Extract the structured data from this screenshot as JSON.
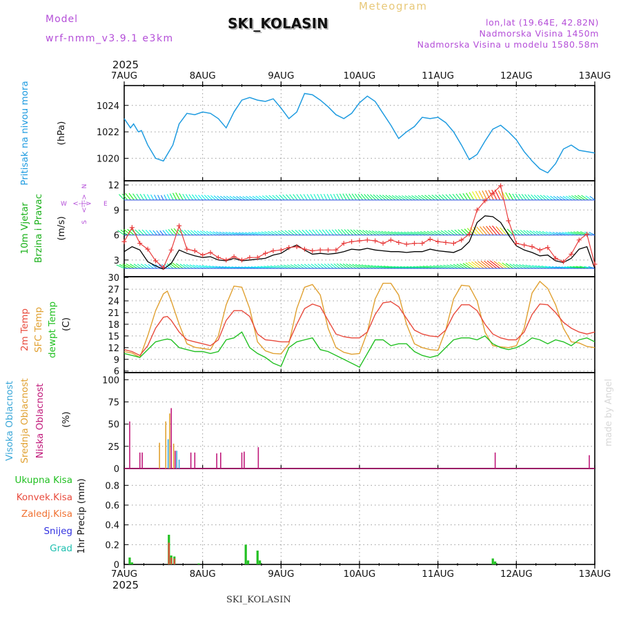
{
  "header": {
    "model_label": "Model",
    "model_name": "wrf-nmm_v3.9.1 e3km",
    "station": "SKI_KOLASIN",
    "meteogram": "Meteogram",
    "lonlat": "lon,lat (19.64E, 42.82N)",
    "elevation": "Nadmorska Visina 1450m",
    "model_elevation": "Nadmorska Visina u modelu 1580.58m",
    "year_top": "2025",
    "year_bottom": "2025",
    "footer_station": "SKI_KOLASIN",
    "watermark": "made by Angel"
  },
  "colors": {
    "pressure": "#1e9be0",
    "wind_label": "#18b018",
    "wind_speed": "#e83c3c",
    "wind_mean": "#000000",
    "temp2m": "#e84a3c",
    "sfc_temp": "#e0a030",
    "dewpt": "#22c022",
    "cloud_high": "#3aa7d8",
    "cloud_mid": "#e0a030",
    "cloud_low": "#c0187a",
    "precip_total": "#22c022",
    "precip_conv": "#e84a3c",
    "precip_frozen": "#f07030",
    "precip_snow": "#3030e0",
    "precip_hail": "#20c0b0",
    "model_purple": "#b44ed8",
    "meteogram_gold": "#e8c878"
  },
  "chart_data": [
    {
      "type": "line",
      "id": "pressure",
      "y_title": "Pritisak na nivou mora",
      "unit": "(hPa)",
      "yticks": [
        1020,
        1022,
        1024
      ],
      "ylim": [
        1018.3,
        1025.5
      ],
      "x_ticks": [
        "7AUG",
        "8AUG",
        "9AUG",
        "10AUG",
        "11AUG",
        "12AUG",
        "13AUG"
      ],
      "x_days": [
        0,
        6
      ],
      "series": [
        {
          "name": "MSL pressure",
          "color_key": "pressure",
          "x": [
            0,
            0.08,
            0.12,
            0.18,
            0.22,
            0.3,
            0.4,
            0.5,
            0.55,
            0.62,
            0.7,
            0.8,
            0.9,
            1.0,
            1.1,
            1.2,
            1.3,
            1.4,
            1.5,
            1.6,
            1.7,
            1.8,
            1.9,
            2.0,
            2.1,
            2.2,
            2.3,
            2.4,
            2.5,
            2.6,
            2.7,
            2.8,
            2.9,
            3.0,
            3.1,
            3.2,
            3.3,
            3.4,
            3.5,
            3.6,
            3.7,
            3.8,
            3.9,
            4.0,
            4.1,
            4.2,
            4.3,
            4.4,
            4.5,
            4.6,
            4.7,
            4.8,
            4.9,
            5.0,
            5.1,
            5.2,
            5.3,
            5.4,
            5.5,
            5.6,
            5.7,
            5.8,
            5.9,
            6.0
          ],
          "values": [
            1023,
            1022.3,
            1022.6,
            1022.0,
            1022.1,
            1021.0,
            1020.0,
            1019.8,
            1020.3,
            1021.0,
            1022.6,
            1023.4,
            1023.3,
            1023.5,
            1023.4,
            1023.0,
            1022.3,
            1023.5,
            1024.4,
            1024.6,
            1024.4,
            1024.3,
            1024.5,
            1023.8,
            1023.0,
            1023.5,
            1024.9,
            1024.8,
            1024.4,
            1023.9,
            1023.3,
            1023.0,
            1023.4,
            1024.2,
            1024.7,
            1024.3,
            1023.4,
            1022.5,
            1021.5,
            1022.0,
            1022.4,
            1023.1,
            1023.0,
            1023.1,
            1022.7,
            1022.0,
            1021.0,
            1019.9,
            1020.3,
            1021.3,
            1022.2,
            1022.5,
            1022.0,
            1021.4,
            1020.5,
            1019.8,
            1019.2,
            1018.9,
            1019.6,
            1020.7,
            1021.0,
            1020.6,
            1020.5,
            1020.4
          ]
        }
      ]
    },
    {
      "type": "line",
      "id": "wind",
      "y_title_1": "10m Vjetar",
      "y_title_2": "Brzina i Pravac",
      "unit": "(m/s)",
      "compass": {
        "w": "W",
        "e": "E",
        "n": "N",
        "s": "S",
        "arrow": "<-|->"
      },
      "yticks": [
        3,
        6,
        9,
        12
      ],
      "ylim": [
        1.0,
        12.5
      ],
      "barb_rows": [
        2.0,
        6.0,
        10.2
      ],
      "series": [
        {
          "name": "wind gust",
          "color_key": "wind_speed",
          "marker": "+",
          "x": [
            0,
            0.1,
            0.2,
            0.3,
            0.4,
            0.5,
            0.6,
            0.7,
            0.8,
            0.9,
            1.0,
            1.1,
            1.2,
            1.3,
            1.4,
            1.5,
            1.6,
            1.7,
            1.8,
            1.9,
            2.0,
            2.1,
            2.2,
            2.3,
            2.4,
            2.5,
            2.6,
            2.7,
            2.8,
            2.9,
            3.0,
            3.1,
            3.2,
            3.3,
            3.4,
            3.5,
            3.6,
            3.7,
            3.8,
            3.9,
            4.0,
            4.1,
            4.2,
            4.3,
            4.4,
            4.5,
            4.6,
            4.7,
            4.8,
            4.9,
            5.0,
            5.1,
            5.2,
            5.3,
            5.4,
            5.5,
            5.6,
            5.7,
            5.8,
            5.9,
            6.0
          ],
          "values": [
            5.2,
            6.9,
            5.0,
            4.3,
            2.9,
            2.1,
            4.2,
            7.1,
            4.3,
            4.1,
            3.6,
            3.9,
            3.3,
            3.0,
            3.4,
            3.0,
            3.3,
            3.3,
            3.8,
            4.1,
            4.2,
            4.5,
            4.6,
            4.3,
            4.1,
            4.2,
            4.2,
            4.2,
            5.0,
            5.2,
            5.3,
            5.4,
            5.3,
            5.0,
            5.4,
            5.1,
            4.9,
            5.0,
            5.0,
            5.5,
            5.2,
            5.1,
            5.0,
            5.4,
            6.1,
            9.0,
            10.1,
            11.0,
            11.9,
            7.7,
            5.0,
            4.8,
            4.6,
            4.2,
            4.5,
            3.2,
            2.8,
            3.7,
            5.4,
            6.1,
            2.5
          ]
        },
        {
          "name": "wind mean",
          "color_key": "wind_mean",
          "x": [
            0,
            0.1,
            0.2,
            0.3,
            0.4,
            0.5,
            0.6,
            0.7,
            0.8,
            0.9,
            1.0,
            1.1,
            1.2,
            1.3,
            1.4,
            1.5,
            1.6,
            1.7,
            1.8,
            1.9,
            2.0,
            2.1,
            2.2,
            2.3,
            2.4,
            2.5,
            2.6,
            2.7,
            2.8,
            2.9,
            3.0,
            3.1,
            3.2,
            3.3,
            3.4,
            3.5,
            3.6,
            3.7,
            3.8,
            3.9,
            4.0,
            4.1,
            4.2,
            4.3,
            4.4,
            4.5,
            4.6,
            4.7,
            4.8,
            4.9,
            5.0,
            5.1,
            5.2,
            5.3,
            5.4,
            5.5,
            5.6,
            5.7,
            5.8,
            5.9,
            6.0
          ],
          "values": [
            4.0,
            4.6,
            4.2,
            2.8,
            2.3,
            1.9,
            2.6,
            4.2,
            3.8,
            3.5,
            3.3,
            3.4,
            3.0,
            2.9,
            3.2,
            2.9,
            3.0,
            3.1,
            3.2,
            3.6,
            3.8,
            4.4,
            4.8,
            4.2,
            3.7,
            3.8,
            3.7,
            3.8,
            4.0,
            4.3,
            4.2,
            4.4,
            4.2,
            4.1,
            4.0,
            4.0,
            3.9,
            4.0,
            4.0,
            4.3,
            4.1,
            4.0,
            3.9,
            4.3,
            5.2,
            7.5,
            8.3,
            8.2,
            7.5,
            6.0,
            4.7,
            4.2,
            3.9,
            3.5,
            3.6,
            2.9,
            2.7,
            3.2,
            4.3,
            4.6,
            2.0
          ]
        }
      ]
    },
    {
      "type": "line",
      "id": "temperature",
      "y_title_1": "2m Temp",
      "y_title_2": "SFC Temp",
      "y_title_3": "dewpt Temp",
      "unit": "(C)",
      "yticks": [
        6,
        9,
        12,
        15,
        18,
        21,
        24,
        27,
        30
      ],
      "ylim": [
        5.6,
        30.2
      ],
      "series": [
        {
          "name": "SFC temp",
          "color_key": "sfc_temp",
          "x": [
            0,
            0.1,
            0.2,
            0.3,
            0.4,
            0.5,
            0.55,
            0.6,
            0.7,
            0.8,
            0.9,
            1.0,
            1.1,
            1.2,
            1.3,
            1.4,
            1.5,
            1.6,
            1.7,
            1.8,
            1.9,
            2.0,
            2.1,
            2.2,
            2.3,
            2.4,
            2.5,
            2.6,
            2.7,
            2.8,
            2.9,
            3.0,
            3.1,
            3.2,
            3.3,
            3.4,
            3.5,
            3.6,
            3.7,
            3.8,
            3.9,
            4.0,
            4.1,
            4.2,
            4.3,
            4.4,
            4.5,
            4.6,
            4.7,
            4.8,
            4.9,
            5.0,
            5.1,
            5.2,
            5.3,
            5.4,
            5.5,
            5.6,
            5.7,
            5.8,
            5.9,
            6.0
          ],
          "values": [
            11.0,
            10.6,
            9.5,
            15.0,
            21.5,
            25.8,
            26.5,
            24.0,
            18.0,
            13.0,
            12.1,
            11.8,
            11.5,
            15.0,
            23.0,
            27.8,
            27.5,
            22.0,
            13.5,
            11.2,
            10.5,
            10.4,
            13.0,
            22.0,
            27.5,
            28.2,
            25.5,
            17.0,
            12.0,
            10.8,
            10.3,
            10.5,
            16.0,
            24.5,
            28.5,
            28.5,
            25.5,
            18.0,
            13.0,
            12.0,
            11.5,
            11.3,
            16.5,
            24.5,
            28.0,
            27.8,
            24.0,
            16.0,
            12.5,
            12.2,
            12.0,
            12.5,
            17.0,
            26.0,
            29.0,
            27.2,
            23.0,
            17.0,
            13.5,
            13.2,
            12.3,
            12.0
          ]
        },
        {
          "name": "2m temp",
          "color_key": "temp2m",
          "x": [
            0,
            0.1,
            0.2,
            0.3,
            0.4,
            0.5,
            0.55,
            0.6,
            0.7,
            0.8,
            0.9,
            1.0,
            1.1,
            1.2,
            1.3,
            1.4,
            1.5,
            1.6,
            1.7,
            1.8,
            1.9,
            2.0,
            2.1,
            2.2,
            2.3,
            2.4,
            2.5,
            2.6,
            2.7,
            2.8,
            2.9,
            3.0,
            3.1,
            3.2,
            3.3,
            3.4,
            3.5,
            3.6,
            3.7,
            3.8,
            3.9,
            4.0,
            4.1,
            4.2,
            4.3,
            4.4,
            4.5,
            4.6,
            4.7,
            4.8,
            4.9,
            5.0,
            5.1,
            5.2,
            5.3,
            5.4,
            5.5,
            5.6,
            5.7,
            5.8,
            5.9,
            6.0
          ],
          "values": [
            11.5,
            11.0,
            10.0,
            12.5,
            17.0,
            19.8,
            20.0,
            19.0,
            16.0,
            14.0,
            13.5,
            13.0,
            12.5,
            14.0,
            19.0,
            21.5,
            21.5,
            20.0,
            15.5,
            14.0,
            13.8,
            13.5,
            13.5,
            18.0,
            22.0,
            23.2,
            22.5,
            19.0,
            15.5,
            14.8,
            14.5,
            14.5,
            16.0,
            20.5,
            23.5,
            23.8,
            22.5,
            19.5,
            16.5,
            15.5,
            15.0,
            14.8,
            16.5,
            20.5,
            23.0,
            23.0,
            21.5,
            18.0,
            15.5,
            14.5,
            14.0,
            14.0,
            16.0,
            20.5,
            23.2,
            23.0,
            21.0,
            18.5,
            17.0,
            16.0,
            15.5,
            16.0
          ]
        },
        {
          "name": "dewpoint",
          "color_key": "dewpt",
          "x": [
            0,
            0.1,
            0.2,
            0.3,
            0.4,
            0.5,
            0.55,
            0.6,
            0.7,
            0.8,
            0.9,
            1.0,
            1.1,
            1.2,
            1.3,
            1.4,
            1.5,
            1.6,
            1.7,
            1.8,
            1.9,
            2.0,
            2.1,
            2.2,
            2.3,
            2.4,
            2.5,
            2.6,
            2.7,
            2.8,
            2.9,
            3.0,
            3.1,
            3.2,
            3.3,
            3.4,
            3.5,
            3.6,
            3.7,
            3.8,
            3.9,
            4.0,
            4.1,
            4.2,
            4.3,
            4.4,
            4.5,
            4.6,
            4.7,
            4.8,
            4.9,
            5.0,
            5.1,
            5.2,
            5.3,
            5.4,
            5.5,
            5.6,
            5.7,
            5.8,
            5.9,
            6.0
          ],
          "values": [
            10.5,
            10.0,
            9.5,
            11.5,
            13.5,
            14.0,
            14.2,
            14.0,
            12.0,
            11.5,
            11.0,
            11.0,
            10.5,
            11.0,
            14.0,
            14.5,
            16.0,
            12.0,
            10.5,
            9.5,
            8.0,
            7.2,
            12.0,
            13.5,
            14.0,
            14.5,
            11.5,
            11.0,
            10.0,
            9.0,
            8.0,
            7.0,
            10.5,
            14.0,
            14.0,
            12.5,
            13.0,
            13.0,
            11.0,
            10.0,
            9.5,
            10.0,
            12.0,
            14.0,
            14.5,
            14.5,
            14.0,
            15.0,
            13.0,
            12.0,
            11.5,
            12.0,
            13.0,
            14.5,
            14.0,
            13.0,
            14.0,
            13.5,
            12.5,
            14.0,
            14.5,
            13.5
          ]
        }
      ]
    },
    {
      "type": "bar",
      "id": "clouds",
      "y_title_1": "Visoka Oblacnost",
      "y_title_2": "Srednja Oblacnost",
      "y_title_3": "Niska Oblacnost",
      "unit": "(%)",
      "yticks": [
        0,
        25,
        50,
        75,
        100
      ],
      "ylim": [
        0,
        108
      ],
      "series": [
        {
          "name": "low",
          "color_key": "cloud_low",
          "x": [
            0.07,
            0.2,
            0.23,
            0.6,
            0.65,
            0.85,
            0.9,
            1.18,
            1.23,
            1.5,
            1.53,
            1.71,
            4.73,
            5.93
          ],
          "values": [
            53,
            18,
            18,
            68,
            20,
            18,
            18,
            17,
            18,
            18,
            19,
            24,
            18,
            15
          ]
        },
        {
          "name": "mid",
          "color_key": "cloud_mid",
          "x": [
            0.45,
            0.53,
            0.58,
            0.63
          ],
          "values": [
            29,
            53,
            62,
            28
          ]
        },
        {
          "name": "high",
          "color_key": "cloud_high",
          "x": [
            0.56,
            0.67,
            0.7
          ],
          "values": [
            33,
            20,
            10
          ]
        }
      ]
    },
    {
      "type": "bar",
      "id": "precip",
      "legend": {
        "total": "Ukupna Kisa",
        "conv": "Konvek.Kisa",
        "frozen": "Zaledj.Kisa",
        "snow": "Snijeg",
        "hail": "Grad"
      },
      "y_title": "1hr Precip",
      "unit": "(mm)",
      "yticks": [
        0,
        0.2,
        0.4,
        0.6,
        0.8
      ],
      "ylim": [
        0,
        0.97
      ],
      "series": [
        {
          "name": "total",
          "color_key": "precip_total",
          "x": [
            0.07,
            0.1,
            0.57,
            0.6,
            0.64,
            0.95,
            1.55,
            1.58,
            1.7,
            1.73,
            4.7,
            4.73
          ],
          "values": [
            0.07,
            0.02,
            0.3,
            0.09,
            0.08,
            0.01,
            0.2,
            0.04,
            0.14,
            0.04,
            0.06,
            0.03
          ]
        },
        {
          "name": "convective",
          "color_key": "precip_conv",
          "x": [
            0.57,
            0.6,
            0.64
          ],
          "values": [
            0.22,
            0.07,
            0.06
          ]
        }
      ]
    }
  ]
}
